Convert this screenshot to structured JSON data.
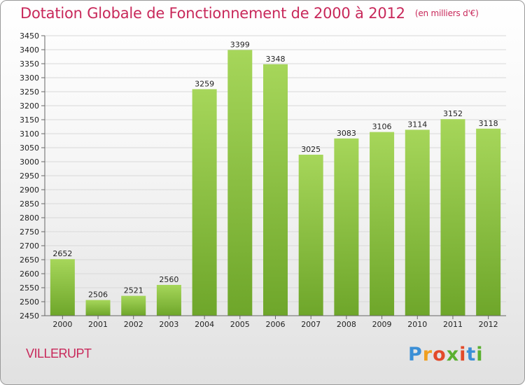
{
  "title": "Dotation Globale de Fonctionnement de 2000 à 2012",
  "unit": "(en milliers d'€)",
  "commune": "VILLERUPT",
  "logo": {
    "text": "Proxiti",
    "colors": [
      "#3b8fd6",
      "#f0a020",
      "#e34a2a",
      "#5ab030",
      "#e34a2a",
      "#3b8fd6",
      "#5ab030"
    ]
  },
  "colors": {
    "bar_light": "#a6d65a",
    "bar_dark": "#6ea62a",
    "grid": "#d8d8d8",
    "title": "#c8285a"
  },
  "chart_data": {
    "type": "bar",
    "title": "Dotation Globale de Fonctionnement de 2000 à 2012",
    "subtitle": "(en milliers d'€)",
    "categories": [
      "2000",
      "2001",
      "2002",
      "2003",
      "2004",
      "2005",
      "2006",
      "2007",
      "2008",
      "2009",
      "2010",
      "2011",
      "2012"
    ],
    "values": [
      2652,
      2506,
      2521,
      2560,
      3259,
      3399,
      3348,
      3025,
      3083,
      3106,
      3114,
      3152,
      3118
    ],
    "ylim": [
      2450,
      3450
    ],
    "ytick_step": 50,
    "grid": true,
    "xlabel": "",
    "ylabel": ""
  }
}
